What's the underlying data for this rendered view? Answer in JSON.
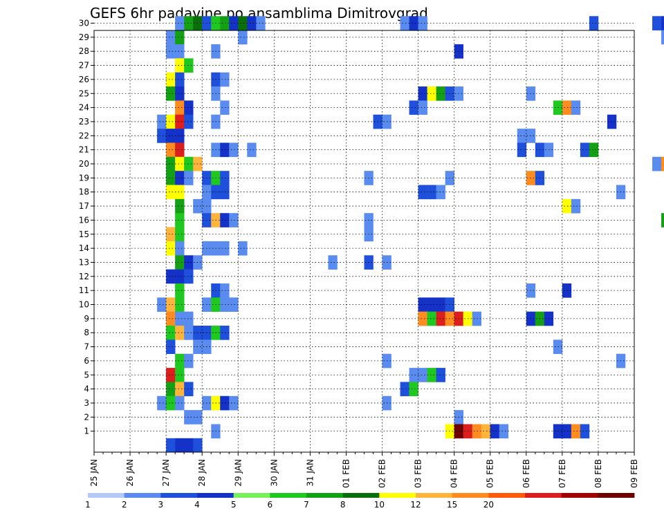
{
  "chart_data": {
    "type": "heatmap",
    "title": "GEFS 6hr padavine po ansamblima Dimitrovgrad",
    "xlabel": "",
    "ylabel": "",
    "x_ticks": [
      "25 JAN",
      "26 JAN",
      "27 JAN",
      "28 JAN",
      "29 JAN",
      "30 JAN",
      "31 JAN",
      "01 FEB",
      "02 FEB",
      "03 FEB",
      "04 FEB",
      "05 FEB",
      "06 FEB",
      "07 FEB",
      "08 FEB",
      "09 FEB"
    ],
    "members": [
      30,
      29,
      28,
      27,
      26,
      25,
      24,
      23,
      22,
      21,
      20,
      19,
      18,
      17,
      16,
      15,
      14,
      13,
      12,
      11,
      10,
      9,
      8,
      7,
      6,
      5,
      4,
      3,
      2,
      1
    ],
    "time_step_hours": 6,
    "grid": true,
    "colorbar": {
      "position": "bottom",
      "tick_labels": [
        "1",
        "2",
        "3",
        "4",
        "5",
        "6",
        "7",
        "8",
        "10",
        "12",
        "15",
        "20"
      ],
      "colors": [
        "#b4c8fa",
        "#5a8cf0",
        "#1e50dc",
        "#1432c8",
        "#78f05a",
        "#1ec81e",
        "#14a014",
        "#0a6e0a",
        "#ffff00",
        "#ffb43c",
        "#ff8c1e",
        "#ff5a0a",
        "#dc1e1e",
        "#a00000",
        "#6e0000"
      ]
    },
    "cells": [
      [
        30,
        "27 JAN 06",
        1
      ],
      [
        30,
        "27 JAN 12",
        6
      ],
      [
        30,
        "27 JAN 18",
        7
      ],
      [
        30,
        "28 JAN 00",
        2
      ],
      [
        30,
        "28 JAN 06",
        5
      ],
      [
        30,
        "28 JAN 12",
        6
      ],
      [
        30,
        "28 JAN 18",
        3
      ],
      [
        30,
        "29 JAN 00",
        7
      ],
      [
        30,
        "29 JAN 06",
        3
      ],
      [
        30,
        "29 JAN 12",
        1
      ],
      [
        30,
        "02 FEB 12",
        1
      ],
      [
        30,
        "02 FEB 18",
        3
      ],
      [
        30,
        "03 FEB 00",
        1
      ],
      [
        30,
        "07 FEB 18",
        2
      ],
      [
        30,
        "09 FEB 12",
        2
      ],
      [
        30,
        "09 FEB 18",
        3
      ],
      [
        29,
        "27 JAN 00",
        1
      ],
      [
        29,
        "27 JAN 06",
        6
      ],
      [
        29,
        "29 JAN 00",
        1
      ],
      [
        29,
        "09 FEB 18",
        1
      ],
      [
        28,
        "27 JAN 00",
        1
      ],
      [
        28,
        "27 JAN 06",
        1
      ],
      [
        28,
        "28 JAN 06",
        1
      ],
      [
        28,
        "04 FEB 00",
        3
      ],
      [
        27,
        "27 JAN 06",
        8
      ],
      [
        27,
        "27 JAN 12",
        5
      ],
      [
        26,
        "27 JAN 00",
        8
      ],
      [
        26,
        "27 JAN 06",
        2
      ],
      [
        26,
        "28 JAN 06",
        2
      ],
      [
        26,
        "28 JAN 12",
        1
      ],
      [
        25,
        "27 JAN 00",
        6
      ],
      [
        25,
        "27 JAN 06",
        3
      ],
      [
        25,
        "28 JAN 06",
        1
      ],
      [
        25,
        "03 FEB 00",
        3
      ],
      [
        25,
        "03 FEB 06",
        8
      ],
      [
        25,
        "03 FEB 12",
        6
      ],
      [
        25,
        "03 FEB 18",
        2
      ],
      [
        25,
        "04 FEB 00",
        1
      ],
      [
        25,
        "06 FEB 00",
        1
      ],
      [
        24,
        "27 JAN 06",
        10
      ],
      [
        24,
        "27 JAN 12",
        3
      ],
      [
        24,
        "28 JAN 12",
        1
      ],
      [
        24,
        "02 FEB 18",
        2
      ],
      [
        24,
        "03 FEB 00",
        1
      ],
      [
        24,
        "06 FEB 18",
        5
      ],
      [
        24,
        "07 FEB 00",
        10
      ],
      [
        24,
        "07 FEB 06",
        1
      ],
      [
        23,
        "26 JAN 18",
        1
      ],
      [
        23,
        "27 JAN 00",
        8
      ],
      [
        23,
        "27 JAN 06",
        12
      ],
      [
        23,
        "27 JAN 12",
        2
      ],
      [
        23,
        "28 JAN 06",
        1
      ],
      [
        23,
        "01 FEB 18",
        2
      ],
      [
        23,
        "02 FEB 00",
        1
      ],
      [
        23,
        "08 FEB 06",
        3
      ],
      [
        22,
        "26 JAN 18",
        2
      ],
      [
        22,
        "27 JAN 00",
        3
      ],
      [
        22,
        "27 JAN 06",
        3
      ],
      [
        22,
        "05 FEB 18",
        1
      ],
      [
        22,
        "06 FEB 00",
        1
      ],
      [
        21,
        "27 JAN 00",
        10
      ],
      [
        21,
        "27 JAN 06",
        12
      ],
      [
        21,
        "28 JAN 06",
        1
      ],
      [
        21,
        "28 JAN 12",
        3
      ],
      [
        21,
        "28 JAN 18",
        1
      ],
      [
        21,
        "29 JAN 06",
        1
      ],
      [
        21,
        "05 FEB 18",
        2
      ],
      [
        21,
        "06 FEB 06",
        2
      ],
      [
        21,
        "06 FEB 12",
        1
      ],
      [
        21,
        "07 FEB 12",
        2
      ],
      [
        21,
        "07 FEB 18",
        6
      ],
      [
        20,
        "27 JAN 00",
        6
      ],
      [
        20,
        "27 JAN 06",
        8
      ],
      [
        20,
        "27 JAN 12",
        5
      ],
      [
        20,
        "27 JAN 18",
        9
      ],
      [
        20,
        "09 FEB 12",
        1
      ],
      [
        20,
        "09 FEB 18",
        10
      ],
      [
        19,
        "27 JAN 00",
        6
      ],
      [
        19,
        "27 JAN 06",
        3
      ],
      [
        19,
        "27 JAN 12",
        1
      ],
      [
        19,
        "28 JAN 00",
        2
      ],
      [
        19,
        "28 JAN 06",
        5
      ],
      [
        19,
        "28 JAN 12",
        2
      ],
      [
        19,
        "01 FEB 12",
        1
      ],
      [
        19,
        "03 FEB 18",
        1
      ],
      [
        19,
        "06 FEB 00",
        10
      ],
      [
        19,
        "06 FEB 06",
        2
      ],
      [
        18,
        "27 JAN 00",
        8
      ],
      [
        18,
        "27 JAN 06",
        8
      ],
      [
        18,
        "28 JAN 00",
        1
      ],
      [
        18,
        "28 JAN 06",
        2
      ],
      [
        18,
        "28 JAN 12",
        2
      ],
      [
        18,
        "03 FEB 00",
        2
      ],
      [
        18,
        "03 FEB 06",
        2
      ],
      [
        18,
        "03 FEB 12",
        1
      ],
      [
        18,
        "08 FEB 12",
        1
      ],
      [
        17,
        "27 JAN 06",
        6
      ],
      [
        17,
        "27 JAN 18",
        1
      ],
      [
        17,
        "28 JAN 00",
        1
      ],
      [
        17,
        "07 FEB 00",
        8
      ],
      [
        17,
        "07 FEB 06",
        1
      ],
      [
        16,
        "27 JAN 06",
        5
      ],
      [
        16,
        "28 JAN 00",
        2
      ],
      [
        16,
        "28 JAN 06",
        9
      ],
      [
        16,
        "28 JAN 12",
        3
      ],
      [
        16,
        "28 JAN 18",
        1
      ],
      [
        16,
        "01 FEB 12",
        1
      ],
      [
        16,
        "09 FEB 18",
        6
      ],
      [
        15,
        "27 JAN 00",
        9
      ],
      [
        15,
        "27 JAN 06",
        5
      ],
      [
        15,
        "01 FEB 12",
        1
      ],
      [
        14,
        "27 JAN 00",
        8
      ],
      [
        14,
        "27 JAN 06",
        1
      ],
      [
        14,
        "28 JAN 00",
        1
      ],
      [
        14,
        "28 JAN 06",
        1
      ],
      [
        14,
        "28 JAN 12",
        1
      ],
      [
        14,
        "29 JAN 00",
        1
      ],
      [
        13,
        "27 JAN 06",
        6
      ],
      [
        13,
        "27 JAN 12",
        3
      ],
      [
        13,
        "27 JAN 18",
        1
      ],
      [
        13,
        "31 JAN 12",
        1
      ],
      [
        13,
        "01 FEB 12",
        2
      ],
      [
        13,
        "02 FEB 00",
        1
      ],
      [
        12,
        "27 JAN 00",
        3
      ],
      [
        12,
        "27 JAN 06",
        3
      ],
      [
        12,
        "27 JAN 12",
        2
      ],
      [
        11,
        "27 JAN 06",
        5
      ],
      [
        11,
        "28 JAN 06",
        2
      ],
      [
        11,
        "28 JAN 12",
        1
      ],
      [
        11,
        "06 FEB 00",
        1
      ],
      [
        11,
        "07 FEB 00",
        3
      ],
      [
        10,
        "26 JAN 18",
        1
      ],
      [
        10,
        "27 JAN 00",
        9
      ],
      [
        10,
        "27 JAN 06",
        5
      ],
      [
        10,
        "28 JAN 00",
        1
      ],
      [
        10,
        "28 JAN 06",
        5
      ],
      [
        10,
        "28 JAN 12",
        1
      ],
      [
        10,
        "28 JAN 18",
        1
      ],
      [
        10,
        "03 FEB 00",
        3
      ],
      [
        10,
        "03 FEB 06",
        3
      ],
      [
        10,
        "03 FEB 12",
        3
      ],
      [
        10,
        "03 FEB 18",
        2
      ],
      [
        9,
        "27 JAN 00",
        10
      ],
      [
        9,
        "27 JAN 06",
        1
      ],
      [
        9,
        "27 JAN 12",
        1
      ],
      [
        9,
        "03 FEB 00",
        10
      ],
      [
        9,
        "03 FEB 06",
        5
      ],
      [
        9,
        "03 FEB 12",
        12
      ],
      [
        9,
        "03 FEB 18",
        10
      ],
      [
        9,
        "04 FEB 00",
        12
      ],
      [
        9,
        "04 FEB 06",
        8
      ],
      [
        9,
        "04 FEB 12",
        1
      ],
      [
        9,
        "06 FEB 00",
        3
      ],
      [
        9,
        "06 FEB 06",
        6
      ],
      [
        9,
        "06 FEB 12",
        3
      ],
      [
        8,
        "27 JAN 00",
        5
      ],
      [
        8,
        "27 JAN 06",
        9
      ],
      [
        8,
        "27 JAN 12",
        1
      ],
      [
        8,
        "27 JAN 18",
        2
      ],
      [
        8,
        "28 JAN 00",
        2
      ],
      [
        8,
        "28 JAN 06",
        5
      ],
      [
        8,
        "28 JAN 12",
        2
      ],
      [
        7,
        "27 JAN 00",
        2
      ],
      [
        7,
        "27 JAN 18",
        1
      ],
      [
        7,
        "28 JAN 00",
        1
      ],
      [
        7,
        "06 FEB 18",
        1
      ],
      [
        6,
        "27 JAN 06",
        5
      ],
      [
        6,
        "27 JAN 12",
        1
      ],
      [
        6,
        "02 FEB 00",
        1
      ],
      [
        6,
        "08 FEB 12",
        1
      ],
      [
        5,
        "27 JAN 00",
        12
      ],
      [
        5,
        "27 JAN 06",
        5
      ],
      [
        5,
        "02 FEB 18",
        1
      ],
      [
        5,
        "03 FEB 00",
        1
      ],
      [
        5,
        "03 FEB 06",
        5
      ],
      [
        5,
        "03 FEB 12",
        2
      ],
      [
        4,
        "27 JAN 00",
        6
      ],
      [
        4,
        "27 JAN 06",
        9
      ],
      [
        4,
        "27 JAN 12",
        2
      ],
      [
        4,
        "02 FEB 12",
        2
      ],
      [
        4,
        "02 FEB 18",
        5
      ],
      [
        3,
        "26 JAN 18",
        1
      ],
      [
        3,
        "27 JAN 00",
        5
      ],
      [
        3,
        "27 JAN 06",
        1
      ],
      [
        3,
        "28 JAN 00",
        1
      ],
      [
        3,
        "28 JAN 06",
        8
      ],
      [
        3,
        "28 JAN 12",
        3
      ],
      [
        3,
        "28 JAN 18",
        1
      ],
      [
        3,
        "02 FEB 00",
        1
      ],
      [
        2,
        "27 JAN 12",
        1
      ],
      [
        2,
        "27 JAN 18",
        1
      ],
      [
        2,
        "04 FEB 00",
        1
      ],
      [
        1,
        "28 JAN 06",
        1
      ],
      [
        1,
        "03 FEB 18",
        8
      ],
      [
        1,
        "04 FEB 00",
        15
      ],
      [
        1,
        "04 FEB 06",
        12
      ],
      [
        1,
        "04 FEB 12",
        10
      ],
      [
        1,
        "04 FEB 18",
        9
      ],
      [
        1,
        "05 FEB 00",
        3
      ],
      [
        1,
        "05 FEB 06",
        1
      ],
      [
        1,
        "06 FEB 18",
        3
      ],
      [
        1,
        "07 FEB 00",
        3
      ],
      [
        1,
        "07 FEB 06",
        10
      ],
      [
        1,
        "07 FEB 12",
        2
      ],
      [
        0,
        "27 JAN 00",
        2
      ],
      [
        0,
        "27 JAN 06",
        3
      ],
      [
        0,
        "27 JAN 12",
        3
      ],
      [
        0,
        "27 JAN 18",
        2
      ]
    ]
  }
}
